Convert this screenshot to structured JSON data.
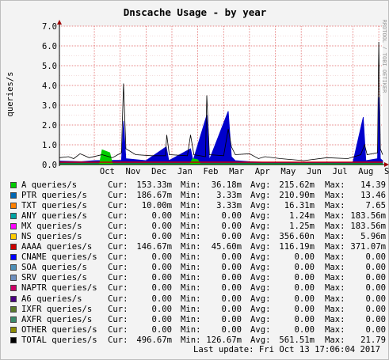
{
  "chart_data": {
    "type": "area",
    "title": "Dnscache Usage - by year",
    "ylabel": "queries/s",
    "xlabel": "",
    "watermark": "RRDTOOL / TOBI OETIKER",
    "ylim": [
      0,
      7
    ],
    "yticks": [
      "0.0",
      "1.0",
      "2.0",
      "3.0",
      "4.0",
      "5.0",
      "6.0",
      "7.0"
    ],
    "xticks": [
      "Oct",
      "Nov",
      "Dec",
      "Jan",
      "Feb",
      "Mar",
      "Apr",
      "May",
      "Jun",
      "Jul",
      "Aug",
      "Sep"
    ],
    "x_range_months": [
      -0.35,
      12.15
    ],
    "series": [
      {
        "name": "TOTAL queries/s",
        "color": "#000000",
        "style": "line",
        "points": [
          [
            -0.35,
            0.35
          ],
          [
            0.0,
            0.4
          ],
          [
            0.2,
            0.3
          ],
          [
            0.45,
            0.55
          ],
          [
            0.8,
            0.35
          ],
          [
            1.3,
            0.5
          ],
          [
            1.7,
            0.35
          ],
          [
            2.05,
            0.6
          ],
          [
            2.13,
            4.1
          ],
          [
            2.22,
            0.8
          ],
          [
            2.6,
            0.5
          ],
          [
            3.2,
            0.45
          ],
          [
            3.75,
            0.45
          ],
          [
            3.8,
            1.5
          ],
          [
            3.9,
            0.5
          ],
          [
            4.6,
            0.45
          ],
          [
            4.72,
            1.5
          ],
          [
            4.85,
            0.5
          ],
          [
            5.3,
            0.4
          ],
          [
            5.35,
            3.5
          ],
          [
            5.45,
            0.5
          ],
          [
            6.0,
            0.45
          ],
          [
            6.18,
            1.8
          ],
          [
            6.3,
            0.9
          ],
          [
            6.45,
            0.5
          ],
          [
            7.0,
            0.55
          ],
          [
            7.35,
            0.3
          ],
          [
            7.6,
            0.4
          ],
          [
            8.2,
            0.3
          ],
          [
            9.1,
            0.2
          ],
          [
            10.0,
            0.35
          ],
          [
            10.8,
            0.3
          ],
          [
            11.3,
            0.5
          ],
          [
            11.45,
            1.0
          ],
          [
            11.55,
            0.5
          ],
          [
            11.95,
            0.6
          ],
          [
            12.0,
            6.2
          ],
          [
            12.06,
            0.8
          ],
          [
            12.15,
            0.5
          ]
        ]
      },
      {
        "name": "PTR queries/s",
        "color": "#0000cc",
        "style": "area",
        "points": [
          [
            -0.35,
            0.18
          ],
          [
            0.5,
            0.15
          ],
          [
            1.0,
            0.2
          ],
          [
            2.05,
            0.22
          ],
          [
            2.13,
            2.2
          ],
          [
            2.22,
            0.3
          ],
          [
            3.0,
            0.2
          ],
          [
            3.78,
            0.9
          ],
          [
            3.88,
            0.2
          ],
          [
            4.72,
            0.8
          ],
          [
            4.82,
            0.2
          ],
          [
            5.35,
            2.5
          ],
          [
            5.45,
            0.25
          ],
          [
            6.18,
            2.7
          ],
          [
            6.3,
            0.4
          ],
          [
            6.45,
            0.2
          ],
          [
            7.0,
            0.15
          ],
          [
            8.0,
            0.1
          ],
          [
            9.0,
            0.08
          ],
          [
            10.0,
            0.1
          ],
          [
            11.0,
            0.12
          ],
          [
            11.4,
            2.4
          ],
          [
            11.5,
            0.2
          ],
          [
            11.95,
            0.3
          ],
          [
            12.0,
            3.4
          ],
          [
            12.06,
            0.3
          ],
          [
            12.15,
            0.2
          ]
        ]
      },
      {
        "name": "A queries/s",
        "color": "#00cc00",
        "style": "area",
        "points": [
          [
            -0.35,
            0.05
          ],
          [
            1.2,
            0.05
          ],
          [
            1.3,
            0.75
          ],
          [
            1.6,
            0.6
          ],
          [
            1.7,
            0.05
          ],
          [
            4.7,
            0.05
          ],
          [
            4.8,
            0.3
          ],
          [
            5.0,
            0.25
          ],
          [
            5.1,
            0.05
          ],
          [
            12.15,
            0.05
          ]
        ]
      },
      {
        "name": "AAAA queries/s",
        "color": "#cc0000",
        "style": "line",
        "points": [
          [
            -0.35,
            0.12
          ],
          [
            12.15,
            0.12
          ]
        ]
      }
    ]
  },
  "legend": [
    {
      "name": "A queries/s",
      "color": "#00cc00",
      "cur": "153.33m",
      "min": "36.18m",
      "avg": "215.62m",
      "max": "14.39"
    },
    {
      "name": "PTR queries/s",
      "color": "#0066b3",
      "cur": "186.67m",
      "min": "3.33m",
      "avg": "210.90m",
      "max": "13.46"
    },
    {
      "name": "TXT queries/s",
      "color": "#ff8000",
      "cur": "10.00m",
      "min": "3.33m",
      "avg": "16.31m",
      "max": "7.65"
    },
    {
      "name": "ANY queries/s",
      "color": "#00a3a3",
      "cur": "0.00",
      "min": "0.00",
      "avg": "1.24m",
      "max": "183.56m"
    },
    {
      "name": "MX queries/s",
      "color": "#ff00ff",
      "cur": "0.00",
      "min": "0.00",
      "avg": "1.25m",
      "max": "183.56m"
    },
    {
      "name": "NS queries/s",
      "color": "#ffcc00",
      "cur": "0.00",
      "min": "0.00",
      "avg": "356.60n",
      "max": "5.96m"
    },
    {
      "name": "AAAA queries/s",
      "color": "#cc0000",
      "cur": "146.67m",
      "min": "45.60m",
      "avg": "116.19m",
      "max": "371.07m"
    },
    {
      "name": "CNAME queries/s",
      "color": "#0000ff",
      "cur": "0.00",
      "min": "0.00",
      "avg": "0.00",
      "max": "0.00"
    },
    {
      "name": "SOA queries/s",
      "color": "#4d8fb8",
      "cur": "0.00",
      "min": "0.00",
      "avg": "0.00",
      "max": "0.00"
    },
    {
      "name": "SRV queries/s",
      "color": "#6d8fbf",
      "cur": "0.00",
      "min": "0.00",
      "avg": "0.00",
      "max": "0.00"
    },
    {
      "name": "NAPTR queries/s",
      "color": "#cc0066",
      "cur": "0.00",
      "min": "0.00",
      "avg": "0.00",
      "max": "0.00"
    },
    {
      "name": "A6 queries/s",
      "color": "#4b0082",
      "cur": "0.00",
      "min": "0.00",
      "avg": "0.00",
      "max": "0.00"
    },
    {
      "name": "IXFR queries/s",
      "color": "#5a7a2a",
      "cur": "0.00",
      "min": "0.00",
      "avg": "0.00",
      "max": "0.00"
    },
    {
      "name": "AXFR queries/s",
      "color": "#3a8a6a",
      "cur": "0.00",
      "min": "0.00",
      "avg": "0.00",
      "max": "0.00"
    },
    {
      "name": "OTHER queries/s",
      "color": "#8a8a00",
      "cur": "0.00",
      "min": "0.00",
      "avg": "0.00",
      "max": "0.00"
    },
    {
      "name": "TOTAL queries/s",
      "color": "#000000",
      "cur": "496.67m",
      "min": "126.67m",
      "avg": "561.51m",
      "max": "21.79"
    }
  ],
  "labels": {
    "cur": "Cur:",
    "min": "Min:",
    "avg": "Avg:",
    "max": "Max:"
  },
  "footer": {
    "last_update": "Last update: Fri Oct 13 17:06:04 2017"
  }
}
